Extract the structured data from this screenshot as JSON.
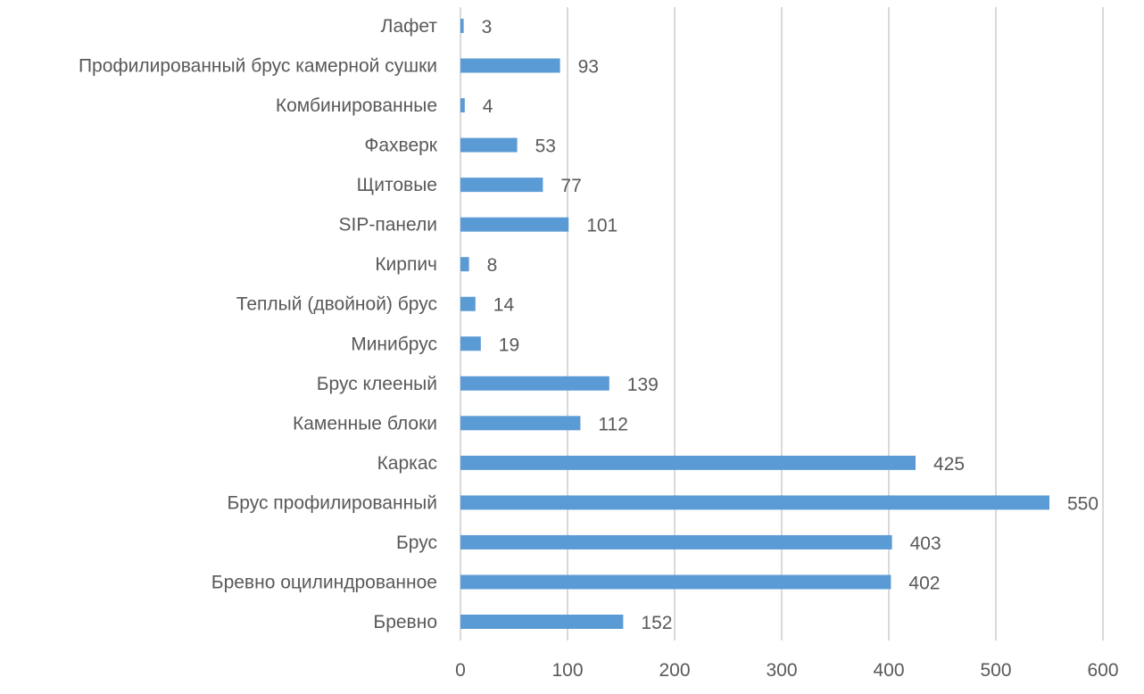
{
  "chart_data": {
    "type": "bar",
    "orientation": "horizontal",
    "title": "",
    "xlabel": "",
    "ylabel": "",
    "categories": [
      "Лафет",
      "Профилированный брус камерной сушки",
      "Комбинированные",
      "Фахверк",
      "Щитовые",
      "SIP-панели",
      "Кирпич",
      "Теплый (двойной) брус",
      "Минибрус",
      "Брус клееный",
      "Каменные блоки",
      "Каркас",
      "Брус профилированный",
      "Брус",
      "Бревно оцилиндрованное",
      "Бревно"
    ],
    "values": [
      3,
      93,
      4,
      53,
      77,
      101,
      8,
      14,
      19,
      139,
      112,
      425,
      550,
      403,
      402,
      152
    ],
    "xlim": [
      0,
      600
    ],
    "xticks": [
      0,
      100,
      200,
      300,
      400,
      500,
      600
    ],
    "grid": true,
    "legend": "none",
    "bar_color": "#5b9bd5",
    "grid_color": "#d9d9d9"
  }
}
